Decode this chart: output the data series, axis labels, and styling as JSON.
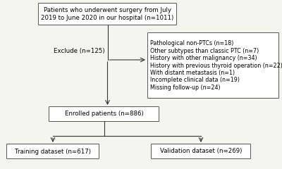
{
  "bg_color": "#f5f5f0",
  "box_top_text": "Patients who underwent surgery from July\n2019 to June 2020 in our hospital (n=1011)",
  "box_right_text": "Pathological non-PTCs (n=18)\nOther subtypes than classic PTC (n=7)\nHistory with other malignancy (n=34)\nHistory with previous thyroid operation (n=22)\nWith distant metastasis (n=1)\nIncomplete clinical data (n=19)\nMissing follow-up (n=24)",
  "box_exclude_text": "Exclude (n=125)",
  "box_enrolled_text": "Enrolled patients (n=886)",
  "box_training_text": "Training dataset (n=617)",
  "box_validation_text": "Validation dataset (n=269)",
  "font_size": 6.2,
  "font_size_small": 5.8,
  "line_color": "#333333",
  "box_fc": "#ffffff",
  "box_ec": "#555555"
}
